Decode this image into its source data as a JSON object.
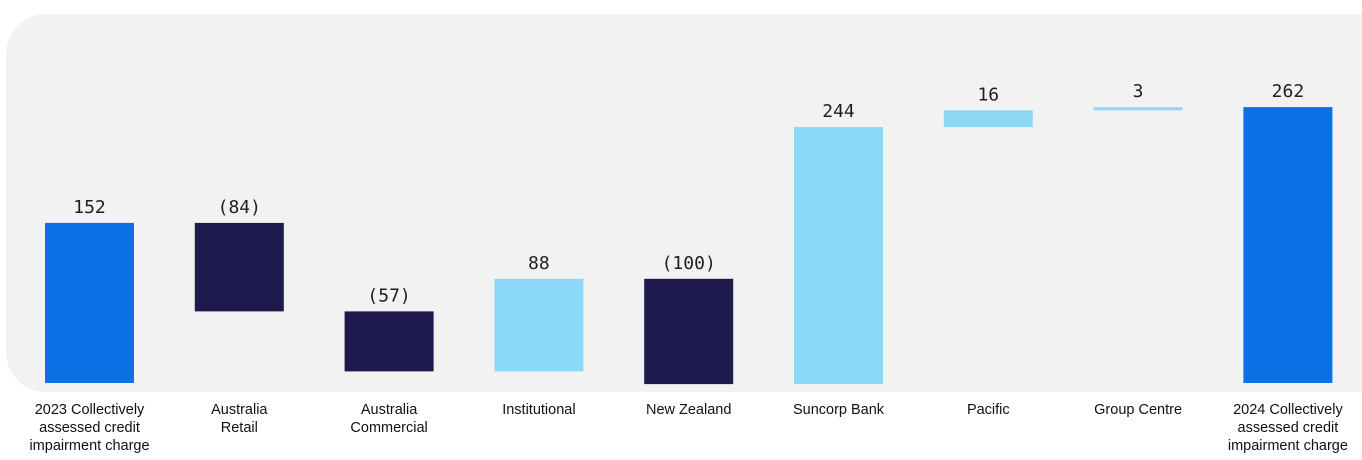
{
  "chart_data": {
    "type": "bar",
    "subtype": "waterfall",
    "categories": [
      "2023 Collectively\nassessed credit\nimpairment charge",
      "Australia\nRetail",
      "Australia\nCommercial",
      "Institutional",
      "New Zealand",
      "Suncorp Bank",
      "Pacific",
      "Group Centre",
      "2024 Collectively\nassessed credit\nimpairment charge"
    ],
    "values": [
      152,
      -84,
      -57,
      88,
      -100,
      244,
      16,
      3,
      262
    ],
    "labels": [
      "152",
      "(84)",
      "(57)",
      "88",
      "(100)",
      "244",
      "16",
      "3",
      "262"
    ],
    "bar_roles": [
      "total",
      "decrease",
      "decrease",
      "increase",
      "decrease",
      "increase",
      "increase",
      "increase",
      "total"
    ],
    "colors": {
      "total": "#0a72e6",
      "decrease": "#1e1a4d",
      "increase": "#8cd9f7",
      "panel": "#f2f2f2"
    },
    "title": "",
    "xlabel": "",
    "ylabel": "",
    "grid": false,
    "legend": "none"
  }
}
